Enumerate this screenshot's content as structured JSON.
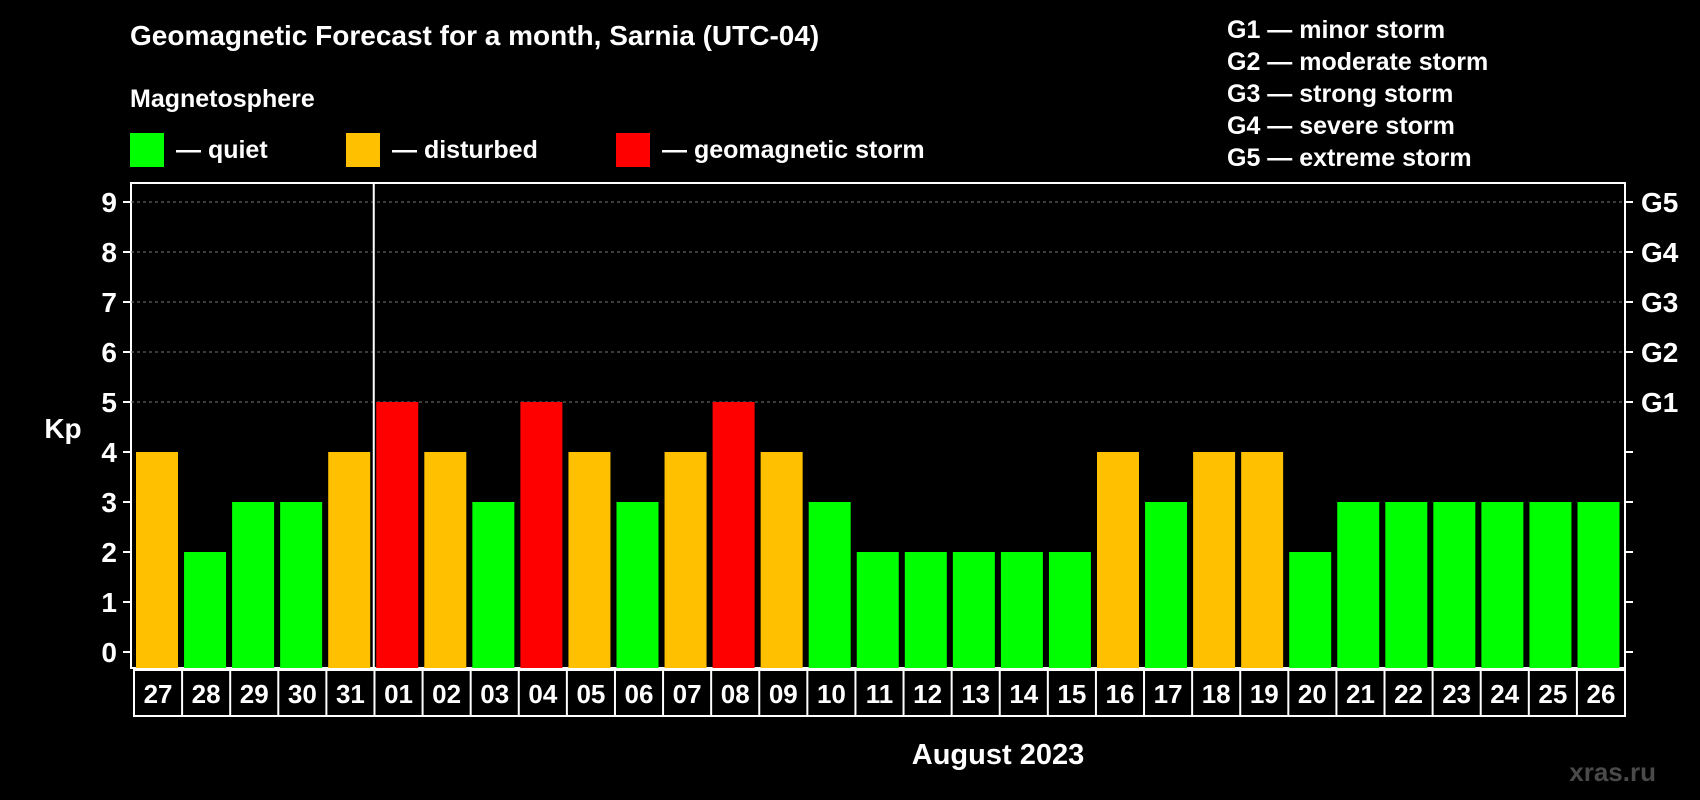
{
  "header": {
    "title": "Geomagnetic Forecast for a month, Sarnia (UTC-04)",
    "subtitle": "Magnetosphere"
  },
  "legend": [
    {
      "label": "— quiet",
      "color": "#00ff00"
    },
    {
      "label": "— disturbed",
      "color": "#ffc000"
    },
    {
      "label": "— geomagnetic storm",
      "color": "#ff0000"
    }
  ],
  "g_legend": [
    "G1 — minor storm",
    "G2 — moderate storm",
    "G3 — strong storm",
    "G4 — severe storm",
    "G5 — extreme storm"
  ],
  "watermark": "xras.ru",
  "chart_data": {
    "type": "bar",
    "title": "Geomagnetic Forecast for a month, Sarnia (UTC-04)",
    "xlabel": "August 2023",
    "ylabel": "Kp",
    "ylim": [
      0,
      9
    ],
    "yticks": [
      "0",
      "1",
      "2",
      "3",
      "4",
      "5",
      "6",
      "7",
      "8",
      "9"
    ],
    "right_ticks": [
      {
        "value": 5,
        "label": "G1"
      },
      {
        "value": 6,
        "label": "G2"
      },
      {
        "value": 7,
        "label": "G3"
      },
      {
        "value": 8,
        "label": "G4"
      },
      {
        "value": 9,
        "label": "G5"
      }
    ],
    "month_divider_after": "31",
    "categories": [
      "27",
      "28",
      "29",
      "30",
      "31",
      "01",
      "02",
      "03",
      "04",
      "05",
      "06",
      "07",
      "08",
      "09",
      "10",
      "11",
      "12",
      "13",
      "14",
      "15",
      "16",
      "17",
      "18",
      "19",
      "20",
      "21",
      "22",
      "23",
      "24",
      "25",
      "26"
    ],
    "values": [
      4,
      2,
      3,
      3,
      4,
      5,
      4,
      3,
      5,
      4,
      3,
      4,
      5,
      4,
      3,
      2,
      2,
      2,
      2,
      2,
      4,
      3,
      4,
      4,
      2,
      3,
      3,
      3,
      3,
      3,
      3
    ],
    "colors": {
      "quiet": "#00ff00",
      "disturbed": "#ffc000",
      "storm": "#ff0000"
    }
  }
}
